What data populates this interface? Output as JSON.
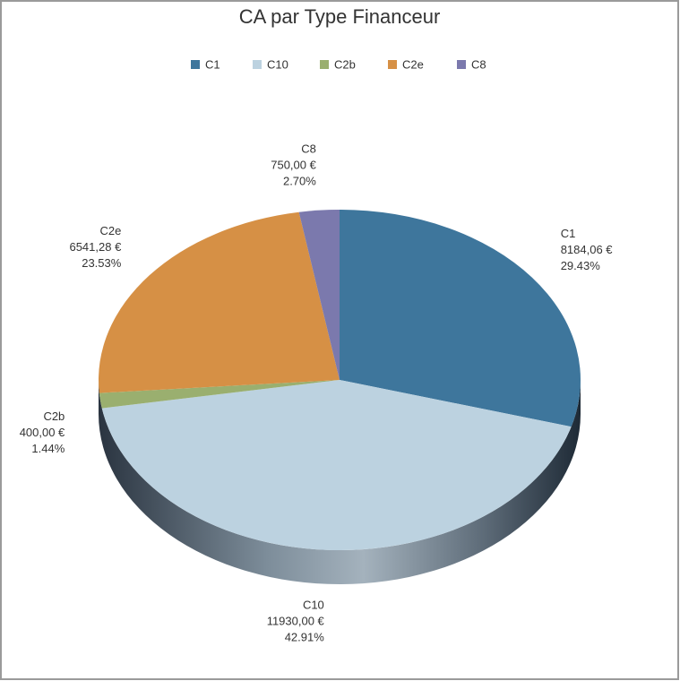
{
  "chart_data": {
    "type": "pie3d",
    "title": "CA par Type Financeur",
    "categories": [
      "C1",
      "C10",
      "C2b",
      "C2e",
      "C8"
    ],
    "values": [
      8184.06,
      11930.0,
      400.0,
      6541.28,
      750.0
    ],
    "value_labels": [
      "8184,06 €",
      "11930,00 €",
      "400,00 €",
      "6541,28 €",
      "750,00 €"
    ],
    "percent_labels": [
      "29.43%",
      "42.91%",
      "1.44%",
      "23.53%",
      "2.70%"
    ],
    "colors": [
      "#3e769c",
      "#bcd2e0",
      "#9aaf6f",
      "#d69045",
      "#7b79ad"
    ],
    "legend": "top"
  }
}
